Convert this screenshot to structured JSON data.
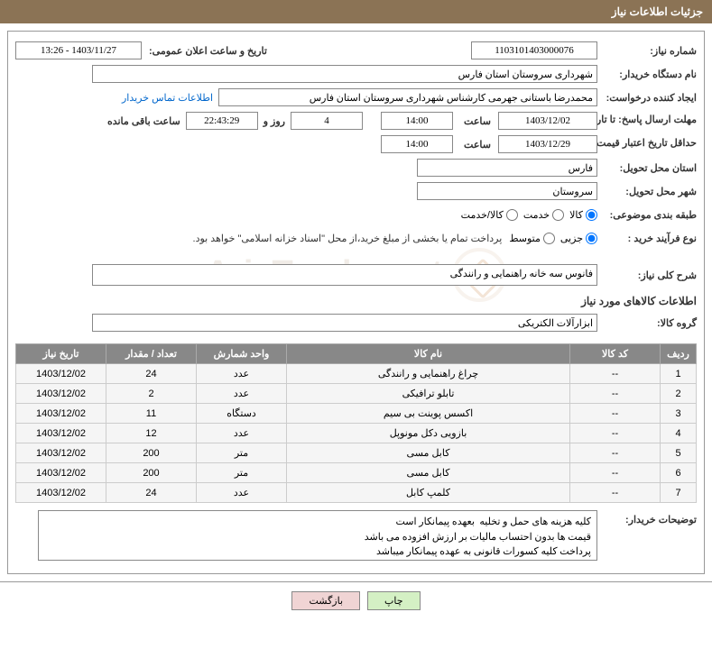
{
  "header": {
    "title": "جزئیات اطلاعات نیاز"
  },
  "fields": {
    "need_number_label": "شماره نیاز:",
    "need_number": "1103101403000076",
    "announce_date_label": "تاریخ و ساعت اعلان عمومی:",
    "announce_date": "1403/11/27 - 13:26",
    "buyer_org_label": "نام دستگاه خریدار:",
    "buyer_org": "شهرداری سروستان استان فارس",
    "requester_label": "ایجاد کننده درخواست:",
    "requester": "محمدرضا باستانی جهرمی کارشناس شهرداری سروستان استان فارس",
    "contact_link": "اطلاعات تماس خریدار",
    "deadline_label": "مهلت ارسال پاسخ: تا تاریخ:",
    "deadline_date": "1403/12/02",
    "time_label": "ساعت",
    "deadline_time": "14:00",
    "days_remaining": "4",
    "days_and_label": "روز و",
    "time_remaining": "22:43:29",
    "remaining_label": "ساعت باقی مانده",
    "validity_label": "حداقل تاریخ اعتبار قیمت: تا تاریخ:",
    "validity_date": "1403/12/29",
    "validity_time": "14:00",
    "province_label": "استان محل تحویل:",
    "province": "فارس",
    "city_label": "شهر محل تحویل:",
    "city": "سروستان",
    "category_label": "طبقه بندی موضوعی:",
    "cat_goods": "کالا",
    "cat_service": "خدمت",
    "cat_goods_service": "کالا/خدمت",
    "process_label": "نوع فرآیند خرید :",
    "proc_partial": "جزیی",
    "proc_medium": "متوسط",
    "process_note": "پرداخت تمام یا بخشی از مبلغ خرید،از محل \"اسناد خزانه اسلامی\" خواهد بود.",
    "summary_label": "شرح کلی نیاز:",
    "summary": "فانوس سه خانه راهنمایی و رانندگی",
    "goods_info_title": "اطلاعات کالاهای مورد نیاز",
    "goods_group_label": "گروه کالا:",
    "goods_group": "ابزارآلات الکتریکی",
    "buyer_notes_label": "توضیحات خریدار:",
    "buyer_notes": "کلیه هزینه های حمل و تخلیه  بعهده پیمانکار است\nقیمت ها بدون احتساب مالیات بر ارزش افزوده می باشد\nپرداخت کلیه کسورات قانونی به عهده پیمانکار میباشد"
  },
  "table": {
    "headers": {
      "row": "ردیف",
      "code": "کد کالا",
      "name": "نام کالا",
      "unit": "واحد شمارش",
      "qty": "تعداد / مقدار",
      "date": "تاریخ نیاز"
    },
    "rows": [
      {
        "n": "1",
        "code": "--",
        "name": "چراغ راهنمایی و رانندگی",
        "unit": "عدد",
        "qty": "24",
        "date": "1403/12/02"
      },
      {
        "n": "2",
        "code": "--",
        "name": "تابلو ترافیکی",
        "unit": "عدد",
        "qty": "2",
        "date": "1403/12/02"
      },
      {
        "n": "3",
        "code": "--",
        "name": "اکسس پوینت بی سیم",
        "unit": "دستگاه",
        "qty": "11",
        "date": "1403/12/02"
      },
      {
        "n": "4",
        "code": "--",
        "name": "بازویی دکل مونوپل",
        "unit": "عدد",
        "qty": "12",
        "date": "1403/12/02"
      },
      {
        "n": "5",
        "code": "--",
        "name": "کابل مسی",
        "unit": "متر",
        "qty": "200",
        "date": "1403/12/02"
      },
      {
        "n": "6",
        "code": "--",
        "name": "کابل مسی",
        "unit": "متر",
        "qty": "200",
        "date": "1403/12/02"
      },
      {
        "n": "7",
        "code": "--",
        "name": "کلمپ کابل",
        "unit": "عدد",
        "qty": "24",
        "date": "1403/12/02"
      }
    ]
  },
  "buttons": {
    "print": "چاپ",
    "back": "بازگشت"
  },
  "watermark": "AriaTender.net"
}
